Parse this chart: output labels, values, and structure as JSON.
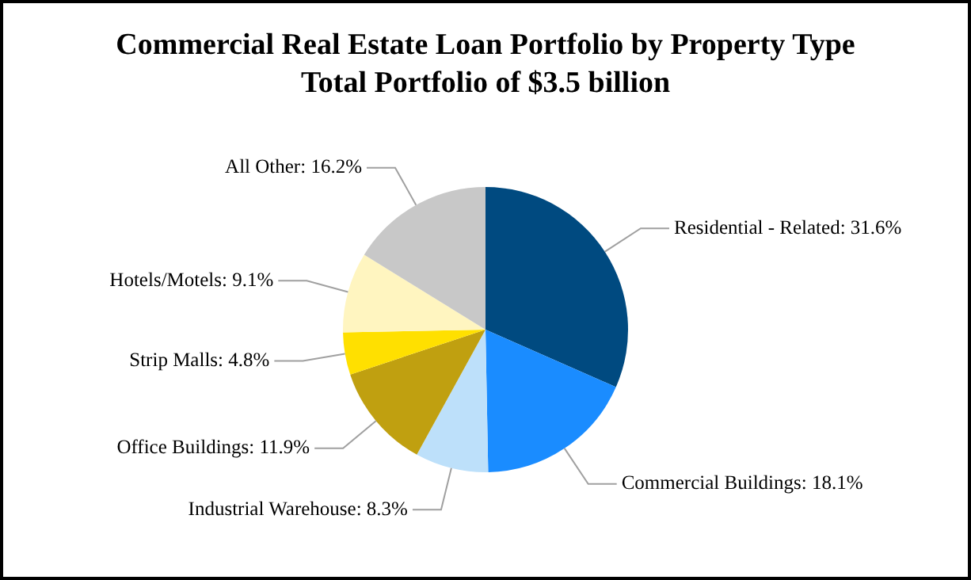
{
  "chart_data": {
    "type": "pie",
    "title": "Commercial Real Estate Loan Portfolio by Property Type",
    "subtitle": "Total Portfolio of $3.5 billion",
    "categories": [
      "Residential - Related",
      "Commercial Buildings",
      "Industrial Warehouse",
      "Office Buildings",
      "Strip Malls",
      "Hotels/Motels",
      "All Other"
    ],
    "values": [
      31.6,
      18.1,
      8.3,
      11.9,
      4.8,
      9.1,
      16.2
    ],
    "value_labels": [
      "31.6%",
      "18.1%",
      "8.3%",
      "11.9%",
      "4.8%",
      "9.1%",
      "16.2%"
    ],
    "colors": [
      "#004a80",
      "#1a8cff",
      "#bde0fa",
      "#c0a010",
      "#ffe000",
      "#fff5c0",
      "#c8c8c8"
    ],
    "legend": false
  }
}
